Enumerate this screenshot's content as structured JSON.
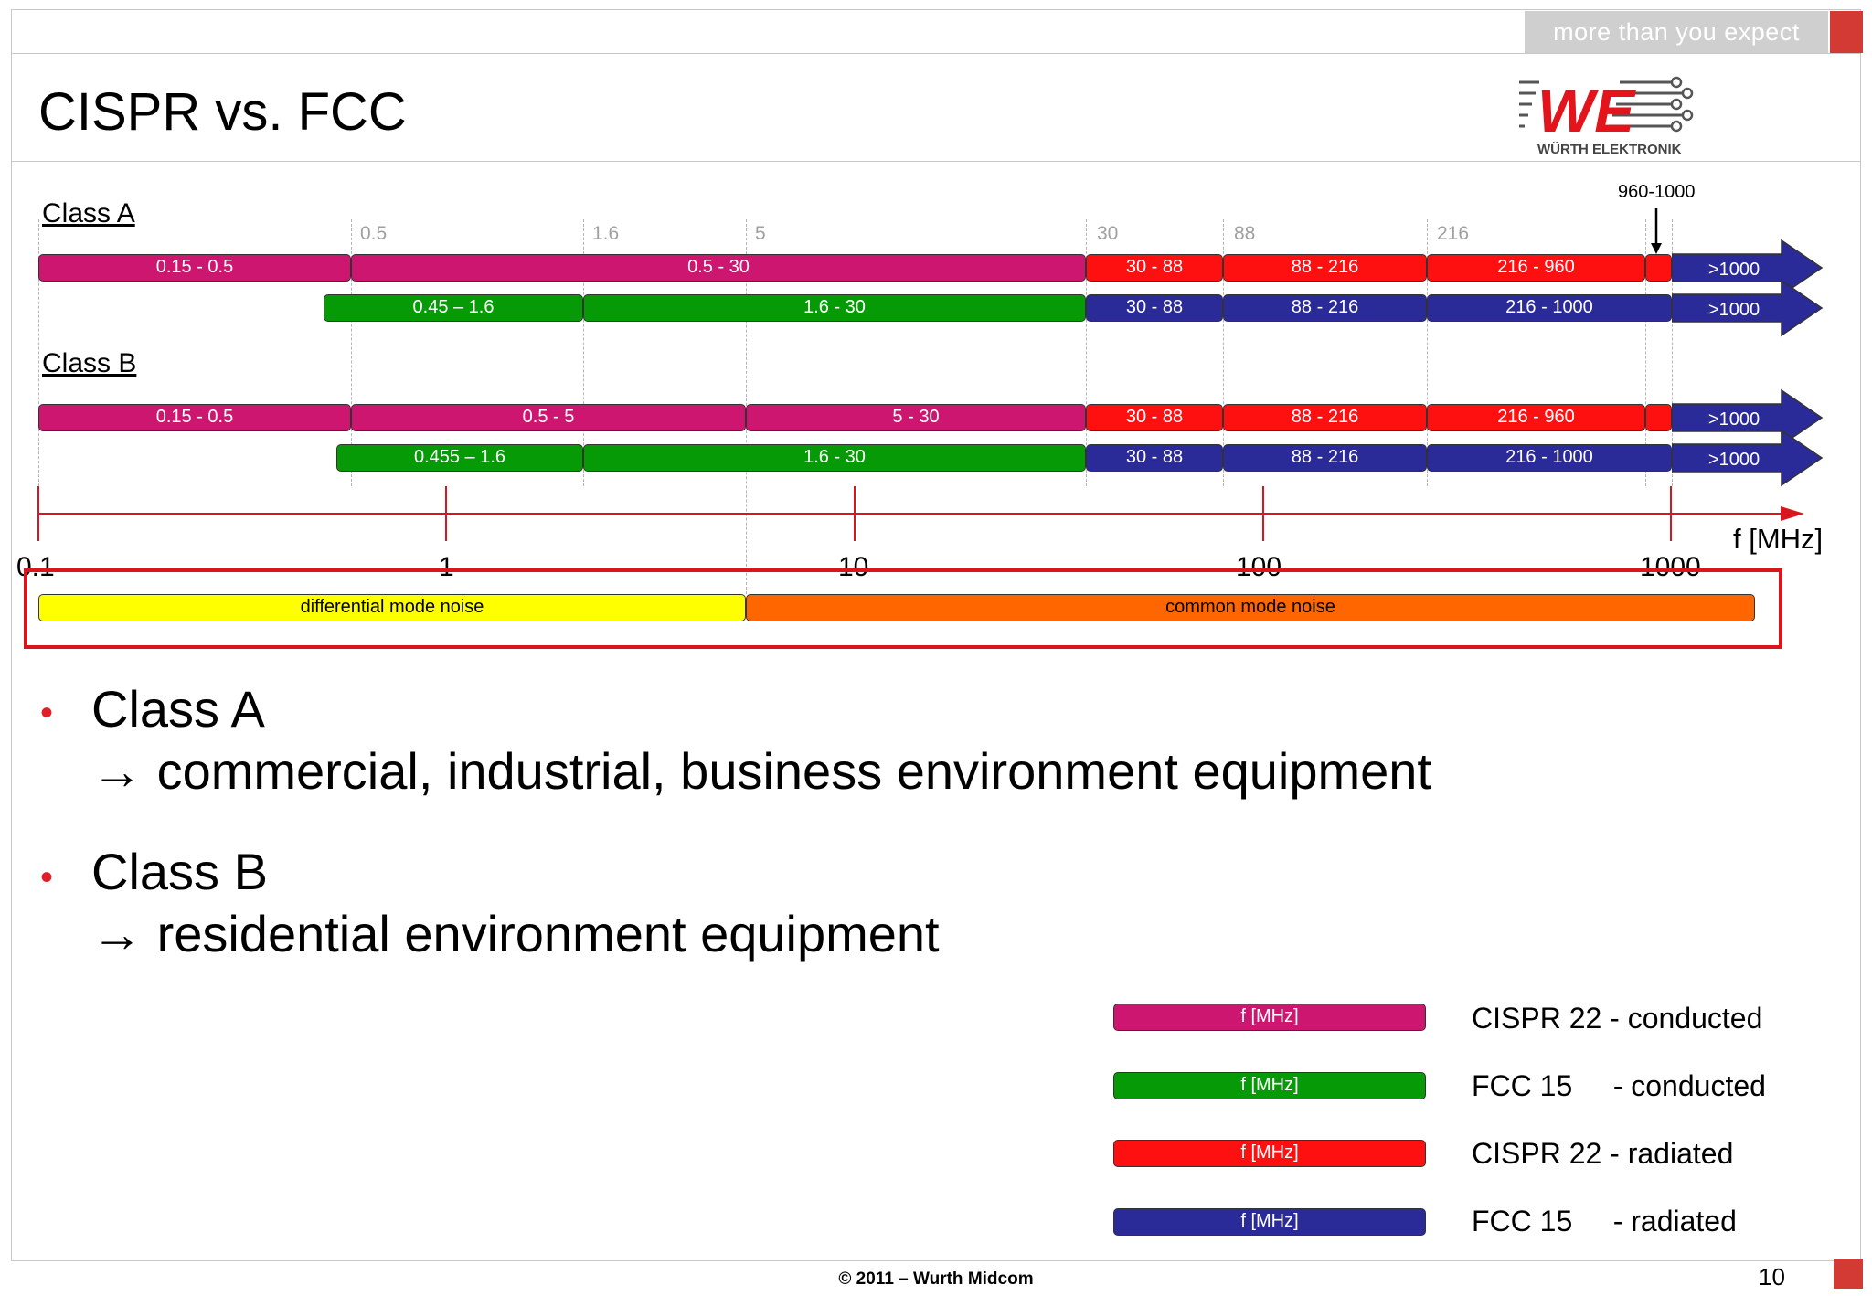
{
  "header": {
    "tagline": "more than you expect",
    "title": "CISPR vs. FCC",
    "logo_text": "WE",
    "logo_subtitle": "WÜRTH ELEKTRONIK"
  },
  "diagram": {
    "class_a_label": "Class A",
    "class_b_label": "Class B",
    "ticks": [
      "0.5",
      "1.6",
      "5",
      "30",
      "88",
      "216"
    ],
    "annotation": "960-1000",
    "class_a": {
      "cispr": [
        "0.15 - 0.5",
        "0.5 - 30",
        "30 - 88",
        "88 - 216",
        "216 - 960",
        "",
        ">1000"
      ],
      "fcc": [
        "0.45 – 1.6",
        "1.6 - 30",
        "30 - 88",
        "88 - 216",
        "216 - 1000",
        ">1000"
      ]
    },
    "class_b": {
      "cispr": [
        "0.15 - 0.5",
        "0.5 - 5",
        "5 - 30",
        "30 - 88",
        "88 - 216",
        "216 - 960",
        "",
        ">1000"
      ],
      "fcc": [
        "0.455 – 1.6",
        "1.6 - 30",
        "30 - 88",
        "88 - 216",
        "216 - 1000",
        ">1000"
      ]
    },
    "axis": {
      "labels": [
        "0.1",
        "1",
        "10",
        "100",
        "1000"
      ],
      "title": "f [MHz]",
      "scale": "log"
    },
    "noise": {
      "differential": "differential mode noise",
      "common": "common mode noise"
    }
  },
  "bullets": [
    {
      "title": "Class A",
      "detail": "commercial, industrial, business environment equipment"
    },
    {
      "title": "Class B",
      "detail": "residential environment equipment"
    }
  ],
  "arrow_glyph": "→",
  "legend": [
    {
      "bar": "f [MHz]",
      "label": "CISPR 22 - conducted",
      "color": "#cc1670"
    },
    {
      "bar": "f [MHz]",
      "label": "FCC 15     - conducted",
      "color": "#079a07"
    },
    {
      "bar": "f [MHz]",
      "label": "CISPR 22 - radiated",
      "color": "#ff1010"
    },
    {
      "bar": "f [MHz]",
      "label": "FCC 15     - radiated",
      "color": "#2a2a99"
    }
  ],
  "footer": {
    "copyright": "© 2011 – Wurth Midcom",
    "page": "10"
  },
  "colors": {
    "cispr_conducted": "#cc1670",
    "fcc_conducted": "#079a07",
    "cispr_radiated": "#ff1010",
    "fcc_radiated": "#2a2a99",
    "accent": "#d9161d"
  }
}
